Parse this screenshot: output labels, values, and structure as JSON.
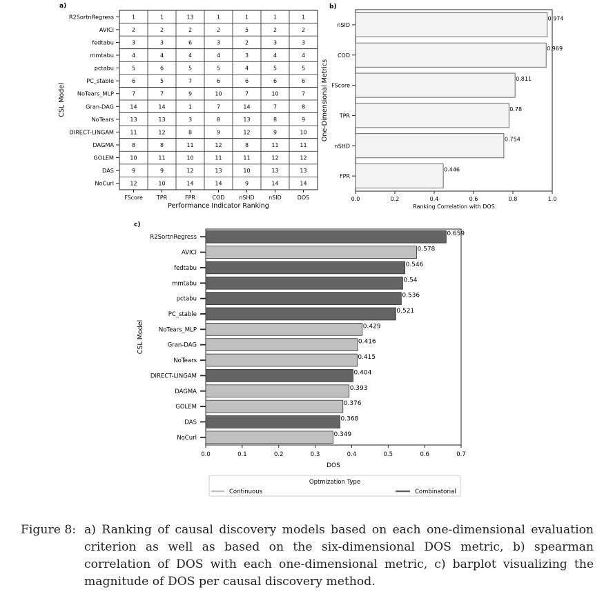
{
  "panel_a": {
    "label": "a)",
    "ylabel": "CSL Model",
    "xlabel": "Performance Indicator Ranking",
    "columns": [
      "FScore",
      "TPR",
      "FPR",
      "COD",
      "nSHD",
      "nSID",
      "DOS"
    ],
    "rows": [
      {
        "model": "R2SortnRegress",
        "ranks": [
          1,
          1,
          13,
          1,
          1,
          1,
          1
        ]
      },
      {
        "model": "AVICI",
        "ranks": [
          2,
          2,
          2,
          2,
          5,
          2,
          2
        ]
      },
      {
        "model": "fedtabu",
        "ranks": [
          3,
          3,
          6,
          3,
          2,
          3,
          3
        ]
      },
      {
        "model": "mmtabu",
        "ranks": [
          4,
          4,
          4,
          4,
          3,
          4,
          4
        ]
      },
      {
        "model": "pctabu",
        "ranks": [
          5,
          6,
          5,
          5,
          4,
          5,
          5
        ]
      },
      {
        "model": "PC_stable",
        "ranks": [
          6,
          5,
          7,
          6,
          6,
          6,
          6
        ]
      },
      {
        "model": "NoTears_MLP",
        "ranks": [
          7,
          7,
          9,
          10,
          7,
          10,
          7
        ]
      },
      {
        "model": "Gran-DAG",
        "ranks": [
          14,
          14,
          1,
          7,
          14,
          7,
          8
        ]
      },
      {
        "model": "NoTears",
        "ranks": [
          13,
          13,
          3,
          8,
          13,
          8,
          9
        ]
      },
      {
        "model": "DIRECT-LINGAM",
        "ranks": [
          11,
          12,
          8,
          9,
          12,
          9,
          10
        ]
      },
      {
        "model": "DAGMA",
        "ranks": [
          8,
          8,
          11,
          12,
          8,
          11,
          11
        ]
      },
      {
        "model": "GOLEM",
        "ranks": [
          10,
          11,
          10,
          11,
          11,
          12,
          12
        ]
      },
      {
        "model": "DAS",
        "ranks": [
          9,
          9,
          12,
          13,
          10,
          13,
          13
        ]
      },
      {
        "model": "NoCurl",
        "ranks": [
          12,
          10,
          14,
          14,
          9,
          14,
          14
        ]
      }
    ]
  },
  "chart_data": [
    {
      "type": "bar",
      "orientation": "horizontal",
      "panel": "b)",
      "categories": [
        "nSID",
        "COD",
        "FScore",
        "TPR",
        "nSHD",
        "FPR"
      ],
      "values": [
        0.974,
        0.969,
        0.811,
        0.78,
        0.754,
        0.446
      ],
      "value_labels": [
        "0.974",
        "0.969",
        "0.811",
        "0.78",
        "0.754",
        "0.446"
      ],
      "xlabel": "Ranking Correlation with DOS",
      "ylabel": "One-Dimensional Metrics",
      "xlim": [
        0,
        1.0
      ],
      "xticks": [
        0.0,
        0.2,
        0.4,
        0.6,
        0.8,
        1.0
      ],
      "xtick_labels": [
        "0.0",
        "0.2",
        "0.4",
        "0.6",
        "0.8",
        "1.0"
      ],
      "bar_color": "#f3f3f3",
      "grid": false
    },
    {
      "type": "bar",
      "orientation": "horizontal",
      "panel": "c)",
      "categories": [
        "R2SortnRegress",
        "AVICI",
        "fedtabu",
        "mmtabu",
        "pctabu",
        "PC_stable",
        "NoTears_MLP",
        "Gran-DAG",
        "NoTears",
        "DIRECT-LINGAM",
        "DAGMA",
        "GOLEM",
        "DAS",
        "NoCurl"
      ],
      "values": [
        0.659,
        0.578,
        0.546,
        0.54,
        0.536,
        0.521,
        0.429,
        0.416,
        0.415,
        0.404,
        0.393,
        0.376,
        0.368,
        0.349
      ],
      "value_labels": [
        "0.659",
        "0.578",
        "0.546",
        "0.54",
        "0.536",
        "0.521",
        "0.429",
        "0.416",
        "0.415",
        "0.404",
        "0.393",
        "0.376",
        "0.368",
        "0.349"
      ],
      "types": [
        "Combinatorial",
        "Continuous",
        "Combinatorial",
        "Combinatorial",
        "Combinatorial",
        "Combinatorial",
        "Continuous",
        "Continuous",
        "Continuous",
        "Combinatorial",
        "Continuous",
        "Continuous",
        "Combinatorial",
        "Continuous"
      ],
      "xlabel": "DOS",
      "ylabel": "CSL Model",
      "xlim": [
        0,
        0.7
      ],
      "xticks": [
        0.0,
        0.1,
        0.2,
        0.3,
        0.4,
        0.5,
        0.6,
        0.7
      ],
      "xtick_labels": [
        "0.0",
        "0.1",
        "0.2",
        "0.3",
        "0.4",
        "0.5",
        "0.6",
        "0.7"
      ],
      "legend": {
        "title": "Optmization Type",
        "placement": "bottom",
        "entries": [
          {
            "label": "Continuous",
            "color": "#c0c0c0"
          },
          {
            "label": "Combinatorial",
            "color": "#646464"
          }
        ]
      },
      "grid": false
    }
  ],
  "caption": {
    "label": "Figure 8:",
    "text": "a) Ranking of causal discovery models based on each one-dimensional evaluation criterion as well as based on the six-dimensional DOS metric, b) spearman correlation of DOS with each one-dimensional metric, c) barplot visualizing the magnitude of DOS per causal discovery method."
  }
}
